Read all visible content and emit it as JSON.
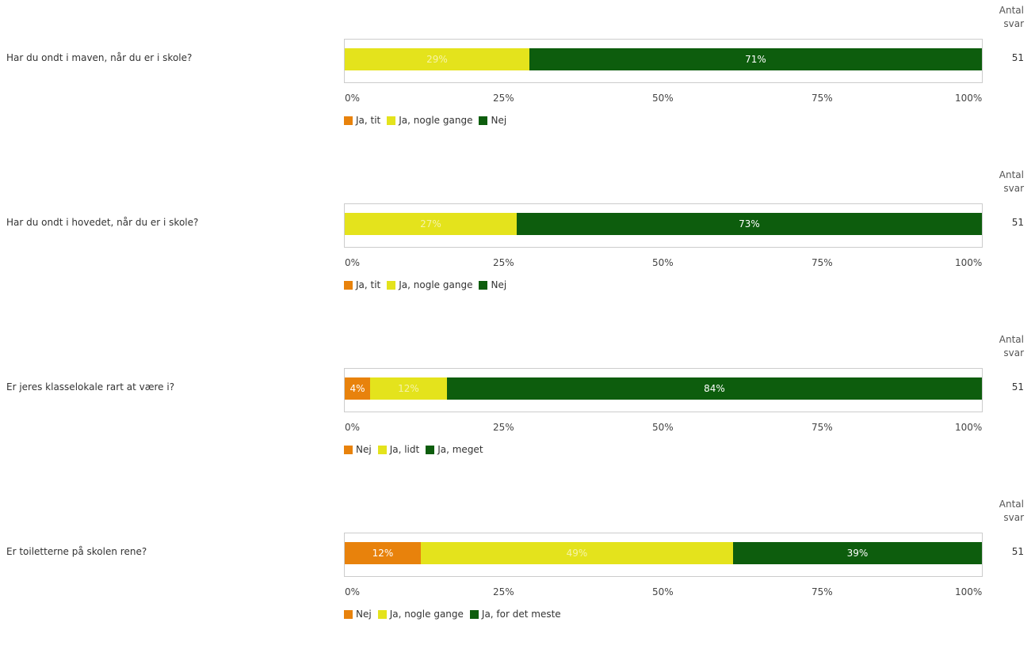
{
  "colors": {
    "orange": "#E8820C",
    "yellow": "#E4E31C",
    "green": "#0D5D0D",
    "label_light": "#FFFFFF",
    "label_on_yellow": "#F6F3A8"
  },
  "count_header": [
    "Antal",
    "svar"
  ],
  "axis_ticks": [
    "0%",
    "25%",
    "50%",
    "75%",
    "100%"
  ],
  "chart_data": [
    {
      "type": "bar",
      "orientation": "horizontal-stacked",
      "question": "Har du ondt i maven, når du er i skole?",
      "count": "51",
      "xlim": [
        0,
        100
      ],
      "series": [
        {
          "name": "Ja, tit",
          "color": "orange",
          "value": 0,
          "label": ""
        },
        {
          "name": "Ja, nogle gange",
          "color": "yellow",
          "value": 29,
          "label": "29%"
        },
        {
          "name": "Nej",
          "color": "green",
          "value": 71,
          "label": "71%"
        }
      ]
    },
    {
      "type": "bar",
      "orientation": "horizontal-stacked",
      "question": "Har du ondt i hovedet, når du er i skole?",
      "count": "51",
      "xlim": [
        0,
        100
      ],
      "series": [
        {
          "name": "Ja, tit",
          "color": "orange",
          "value": 0,
          "label": ""
        },
        {
          "name": "Ja, nogle gange",
          "color": "yellow",
          "value": 27,
          "label": "27%"
        },
        {
          "name": "Nej",
          "color": "green",
          "value": 73,
          "label": "73%"
        }
      ]
    },
    {
      "type": "bar",
      "orientation": "horizontal-stacked",
      "question": "Er jeres klasselokale rart at være i?",
      "count": "51",
      "xlim": [
        0,
        100
      ],
      "series": [
        {
          "name": "Nej",
          "color": "orange",
          "value": 4,
          "label": "4%"
        },
        {
          "name": "Ja, lidt",
          "color": "yellow",
          "value": 12,
          "label": "12%"
        },
        {
          "name": "Ja, meget",
          "color": "green",
          "value": 84,
          "label": "84%"
        }
      ]
    },
    {
      "type": "bar",
      "orientation": "horizontal-stacked",
      "question": "Er toiletterne på skolen rene?",
      "count": "51",
      "xlim": [
        0,
        100
      ],
      "series": [
        {
          "name": "Nej",
          "color": "orange",
          "value": 12,
          "label": "12%"
        },
        {
          "name": "Ja, nogle gange",
          "color": "yellow",
          "value": 49,
          "label": "49%"
        },
        {
          "name": "Ja, for det meste",
          "color": "green",
          "value": 39,
          "label": "39%"
        }
      ]
    }
  ]
}
